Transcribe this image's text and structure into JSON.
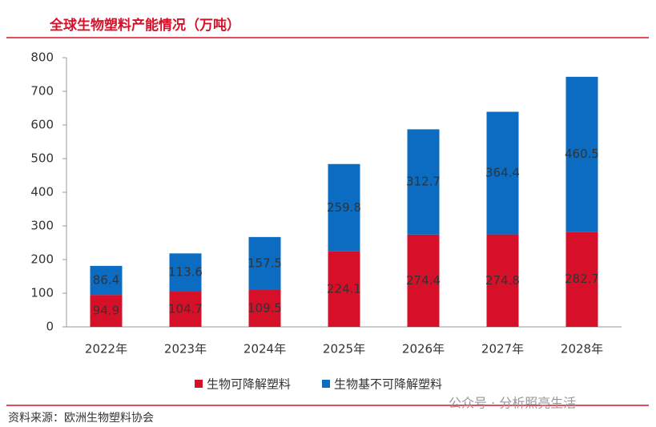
{
  "chart_data": {
    "type": "stacked_bar",
    "title": "全球生物塑料产能情况（万吨）",
    "categories": [
      "2022年",
      "2023年",
      "2024年",
      "2025年",
      "2026年",
      "2027年",
      "2028年"
    ],
    "series": [
      {
        "name": "生物可降解塑料",
        "color": "#d7102a",
        "values": [
          94.9,
          104.7,
          109.5,
          224.1,
          274.4,
          274.8,
          282.7
        ]
      },
      {
        "name": "生物基不可降解塑料",
        "color": "#0b6cc1",
        "values": [
          86.4,
          113.6,
          157.5,
          259.8,
          312.7,
          364.4,
          460.5
        ]
      }
    ],
    "ylim": [
      0,
      800
    ],
    "yticks": [
      0,
      100,
      200,
      300,
      400,
      500,
      600,
      700,
      800
    ],
    "legend": "bottom",
    "source": "资料来源：欧洲生物塑料协会",
    "watermark": "公众号 · 分析照亮生活"
  }
}
